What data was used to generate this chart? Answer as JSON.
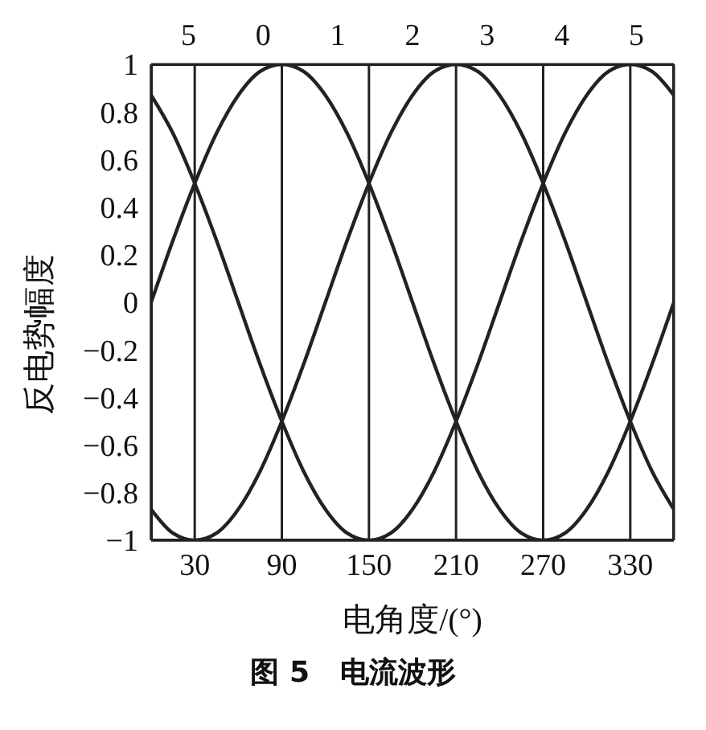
{
  "chart_data": {
    "type": "line",
    "title": "图 5   电流波形",
    "xlabel": "电角度/(°)",
    "ylabel": "反电势幅度",
    "x": [
      0,
      15,
      30,
      45,
      60,
      75,
      90,
      105,
      120,
      135,
      150,
      165,
      180,
      195,
      210,
      225,
      240,
      255,
      270,
      285,
      300,
      315,
      330,
      345,
      360
    ],
    "series": [
      {
        "color": "#222222",
        "values": [
          0,
          0.26,
          0.5,
          0.71,
          0.87,
          0.97,
          1,
          0.97,
          0.87,
          0.71,
          0.5,
          0.26,
          0,
          -0.26,
          -0.5,
          -0.71,
          -0.87,
          -0.97,
          -1,
          -0.97,
          -0.87,
          -0.71,
          -0.5,
          -0.26,
          0
        ]
      },
      {
        "color": "#222222",
        "values": [
          0.87,
          0.71,
          0.5,
          0.26,
          0,
          -0.26,
          -0.5,
          -0.71,
          -0.87,
          -0.97,
          -1,
          -0.97,
          -0.87,
          -0.71,
          -0.5,
          -0.26,
          0,
          0.26,
          0.5,
          0.71,
          0.87,
          0.97,
          1,
          0.97,
          0.87
        ]
      },
      {
        "color": "#222222",
        "values": [
          -0.87,
          -0.97,
          -1,
          -0.97,
          -0.87,
          -0.71,
          -0.5,
          -0.26,
          0,
          0.26,
          0.5,
          0.71,
          0.87,
          0.97,
          1,
          0.97,
          0.87,
          0.71,
          0.5,
          0.26,
          0,
          -0.26,
          -0.5,
          -0.71,
          -0.87
        ]
      }
    ],
    "xlim": [
      0,
      360
    ],
    "xticks": [
      30,
      90,
      150,
      210,
      270,
      330
    ],
    "annotations": [
      "5",
      "0",
      "1",
      "2",
      "3",
      "4",
      "5"
    ],
    "ylim": [
      -1,
      1
    ],
    "yticks": [
      -1,
      -0.8,
      -0.6,
      -0.4,
      -0.2,
      0,
      0.2,
      0.4,
      0.6,
      0.8,
      1
    ],
    "grid": true,
    "marker": "none",
    "line_style": "solid"
  }
}
